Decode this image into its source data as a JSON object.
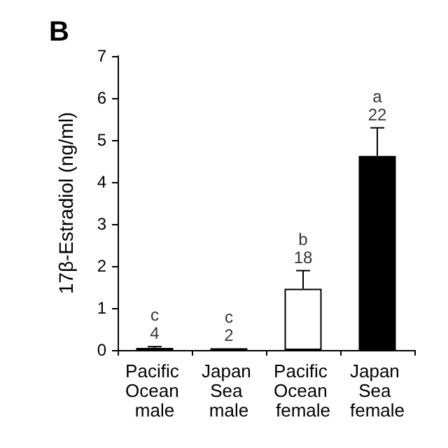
{
  "chart_data": {
    "type": "bar",
    "title": "B",
    "ylabel": "17β-Estradiol (ng/ml)",
    "categories": [
      "Pacific Ocean male",
      "Japan Sea male",
      "Pacific Ocean female",
      "Japan Sea female"
    ],
    "values": [
      0.05,
      0.04,
      1.46,
      4.62
    ],
    "errors": [
      0.03,
      null,
      0.43,
      0.67
    ],
    "colors": [
      "#000000",
      "#000000",
      "#ffffff",
      "#000000"
    ],
    "ylim": [
      0,
      7
    ],
    "yticks": [
      0,
      1,
      2,
      3,
      4,
      5,
      6,
      7
    ],
    "grid": false,
    "annotations": [
      {
        "text": "c\n4",
        "x": "Pacific Ocean male",
        "y": 0.08
      },
      {
        "text": "c\n2",
        "x": "Japan Sea male",
        "y": 0.04
      },
      {
        "text": "b\n18",
        "x": "Pacific Ocean female",
        "y": 1.89
      },
      {
        "text": "a\n22",
        "x": "Japan Sea female",
        "y": 5.29
      }
    ]
  }
}
